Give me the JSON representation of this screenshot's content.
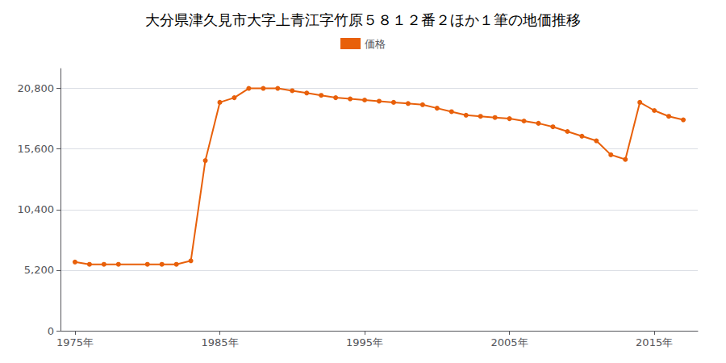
{
  "chart_data": {
    "type": "line",
    "title": "大分県津久見市大字上青江字竹原５８１２番２ほか１筆の地価推移",
    "x": [
      1975,
      1976,
      1977,
      1978,
      1980,
      1981,
      1982,
      1983,
      1984,
      1985,
      1986,
      1987,
      1988,
      1989,
      1990,
      1991,
      1992,
      1993,
      1994,
      1995,
      1996,
      1997,
      1998,
      1999,
      2000,
      2001,
      2002,
      2003,
      2004,
      2005,
      2006,
      2007,
      2008,
      2009,
      2010,
      2011,
      2012,
      2013,
      2014,
      2015,
      2016,
      2017
    ],
    "series": [
      {
        "name": "価格",
        "color": "#e8600a",
        "marker": "circle",
        "values": [
          5900,
          5700,
          5700,
          5700,
          5700,
          5700,
          5700,
          6000,
          14600,
          19600,
          20000,
          20800,
          20800,
          20800,
          20600,
          20400,
          20200,
          20000,
          19900,
          19800,
          19700,
          19600,
          19500,
          19400,
          19100,
          18800,
          18500,
          18400,
          18300,
          18200,
          18000,
          17800,
          17500,
          17100,
          16700,
          16300,
          15100,
          14700,
          19600,
          18900,
          18400,
          18100
        ]
      }
    ],
    "xlim": [
      1974,
      2018
    ],
    "xticks": [
      {
        "value": 1975,
        "label": "1975年"
      },
      {
        "value": 1985,
        "label": "1985年"
      },
      {
        "value": 1995,
        "label": "1995年"
      },
      {
        "value": 2005,
        "label": "2005年"
      },
      {
        "value": 2015,
        "label": "2015年"
      }
    ],
    "ylim": [
      0,
      22500
    ],
    "yticks": [
      0,
      {
        "value": 5200,
        "label": "5,200"
      },
      {
        "value": 10400,
        "label": "10,400"
      },
      {
        "value": 15600,
        "label": "15,600"
      },
      {
        "value": 20800,
        "label": "20,800"
      }
    ],
    "grid": true,
    "legend": "top"
  }
}
